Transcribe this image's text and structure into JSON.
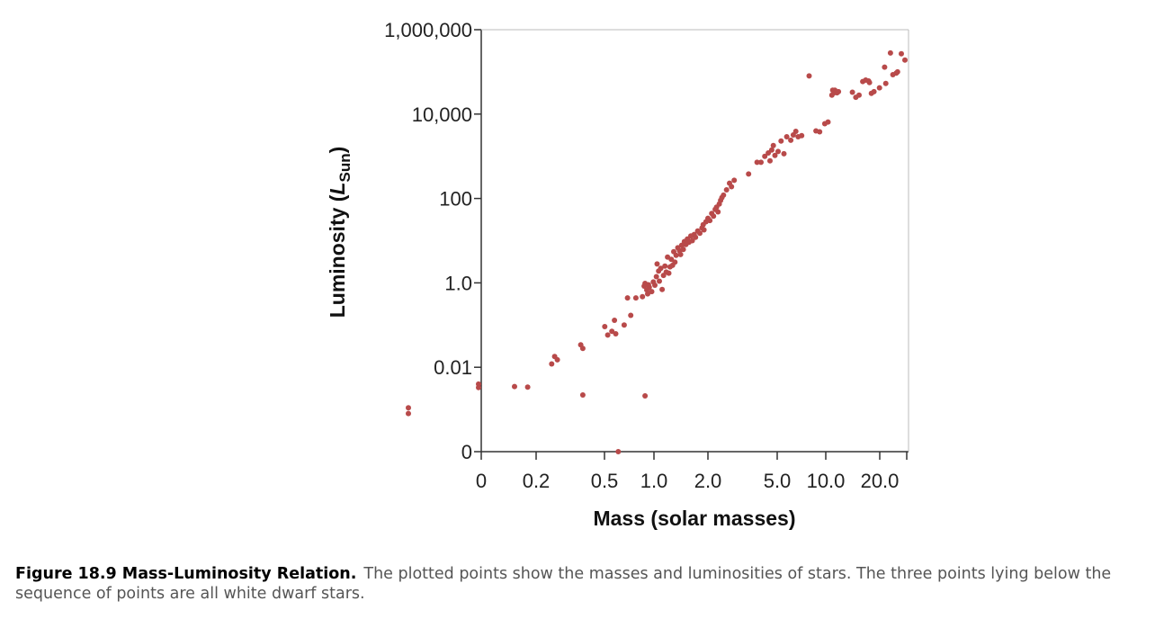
{
  "chart_data": {
    "type": "scatter",
    "xlabel": "Mass (solar masses)",
    "ylabel_main": "Luminosity (",
    "ylabel_symbol": "L",
    "ylabel_sub": "Sun",
    "ylabel_close": ")",
    "x_ticks": [
      "0",
      "0.2",
      "0.5",
      "1.0",
      "2.0",
      "5.0",
      "10.0",
      "20.0"
    ],
    "y_ticks": [
      "0",
      "0.01",
      "1.0",
      "100",
      "10,000",
      "1,000,000"
    ],
    "y_scale": "log",
    "x_scale": "log",
    "grid": false,
    "point_color": "#b84a4a",
    "points": [
      [
        0.04,
        0.0011
      ],
      [
        0.04,
        0.0008
      ],
      [
        0.1,
        0.004
      ],
      [
        0.1,
        0.0033
      ],
      [
        0.16,
        0.0035
      ],
      [
        0.19,
        0.0034
      ],
      [
        0.26,
        0.012
      ],
      [
        0.27,
        0.018
      ],
      [
        0.28,
        0.015
      ],
      [
        0.38,
        0.034
      ],
      [
        0.39,
        0.028
      ],
      [
        0.39,
        0.0022
      ],
      [
        0.52,
        0.092
      ],
      [
        0.54,
        0.058
      ],
      [
        0.57,
        0.071
      ],
      [
        0.59,
        0.13
      ],
      [
        0.6,
        0.062
      ],
      [
        0.62,
        0.0001
      ],
      [
        0.67,
        0.1
      ],
      [
        0.7,
        0.44
      ],
      [
        0.73,
        0.17
      ],
      [
        0.78,
        0.44
      ],
      [
        0.85,
        0.47
      ],
      [
        0.88,
        0.0021
      ],
      [
        0.87,
        0.84
      ],
      [
        0.88,
        0.97
      ],
      [
        0.9,
        0.68
      ],
      [
        0.91,
        0.55
      ],
      [
        0.92,
        0.9
      ],
      [
        0.93,
        0.79
      ],
      [
        0.96,
        0.62
      ],
      [
        0.98,
        1.05
      ],
      [
        1.0,
        0.88
      ],
      [
        1.02,
        1.4
      ],
      [
        1.03,
        2.8
      ],
      [
        1.05,
        1.9
      ],
      [
        1.06,
        1.1
      ],
      [
        1.08,
        2.2
      ],
      [
        1.1,
        0.7
      ],
      [
        1.12,
        1.5
      ],
      [
        1.14,
        2.5
      ],
      [
        1.16,
        1.8
      ],
      [
        1.18,
        4.1
      ],
      [
        1.2,
        1.7
      ],
      [
        1.22,
        2.4
      ],
      [
        1.24,
        3.6
      ],
      [
        1.26,
        2.6
      ],
      [
        1.28,
        5.5
      ],
      [
        1.3,
        3.1
      ],
      [
        1.32,
        4.5
      ],
      [
        1.35,
        6.8
      ],
      [
        1.38,
        5.8
      ],
      [
        1.4,
        4.7
      ],
      [
        1.42,
        7.8
      ],
      [
        1.45,
        6.2
      ],
      [
        1.47,
        9.5
      ],
      [
        1.5,
        8.1
      ],
      [
        1.53,
        11
      ],
      [
        1.56,
        9.2
      ],
      [
        1.6,
        13
      ],
      [
        1.63,
        10
      ],
      [
        1.67,
        14
      ],
      [
        1.7,
        12
      ],
      [
        1.75,
        17
      ],
      [
        1.8,
        15
      ],
      [
        1.85,
        20
      ],
      [
        1.88,
        24
      ],
      [
        1.9,
        18
      ],
      [
        1.95,
        28
      ],
      [
        2.0,
        34
      ],
      [
        2.05,
        30
      ],
      [
        2.1,
        44
      ],
      [
        2.15,
        38
      ],
      [
        2.2,
        55
      ],
      [
        2.24,
        62
      ],
      [
        2.28,
        48
      ],
      [
        2.32,
        74
      ],
      [
        2.36,
        90
      ],
      [
        2.4,
        105
      ],
      [
        2.45,
        120
      ],
      [
        2.55,
        160
      ],
      [
        2.65,
        230
      ],
      [
        2.72,
        190
      ],
      [
        2.82,
        270
      ],
      [
        3.4,
        380
      ],
      [
        3.8,
        720
      ],
      [
        4.0,
        720
      ],
      [
        4.2,
        1000
      ],
      [
        4.4,
        1200
      ],
      [
        4.5,
        780
      ],
      [
        4.6,
        1400
      ],
      [
        4.7,
        1800
      ],
      [
        4.8,
        1050
      ],
      [
        5.0,
        1300
      ],
      [
        5.2,
        2300
      ],
      [
        5.4,
        1150
      ],
      [
        5.6,
        2900
      ],
      [
        5.9,
        2400
      ],
      [
        6.1,
        3200
      ],
      [
        6.3,
        3900
      ],
      [
        6.5,
        2900
      ],
      [
        6.8,
        3100
      ],
      [
        7.5,
        80000
      ],
      [
        8.2,
        4000
      ],
      [
        8.6,
        3800
      ],
      [
        9.2,
        5900
      ],
      [
        9.6,
        6500
      ],
      [
        10.1,
        28000
      ],
      [
        10.4,
        32000
      ],
      [
        10.2,
        37000
      ],
      [
        10.5,
        37000
      ],
      [
        10.8,
        32000
      ],
      [
        11.0,
        34000
      ],
      [
        13.2,
        33000
      ],
      [
        13.8,
        25000
      ],
      [
        14.4,
        28000
      ],
      [
        15.1,
        59000
      ],
      [
        15.7,
        64000
      ],
      [
        16.3,
        61000
      ],
      [
        16.9,
        31000
      ],
      [
        17.5,
        34000
      ],
      [
        18.8,
        42000
      ],
      [
        20.4,
        53000
      ],
      [
        16.5,
        56000
      ],
      [
        20.1,
        130000
      ],
      [
        22.4,
        86000
      ],
      [
        23.8,
        100000
      ],
      [
        25.0,
        270000
      ],
      [
        21.7,
        280000
      ],
      [
        23.4,
        94000
      ],
      [
        26.2,
        190000
      ]
    ]
  },
  "caption": {
    "figure_label": "Figure 18.9 Mass-Luminosity Relation.",
    "text": "The plotted points show the masses and luminosities of stars. The three points lying below the sequence of points are all white dwarf stars."
  }
}
